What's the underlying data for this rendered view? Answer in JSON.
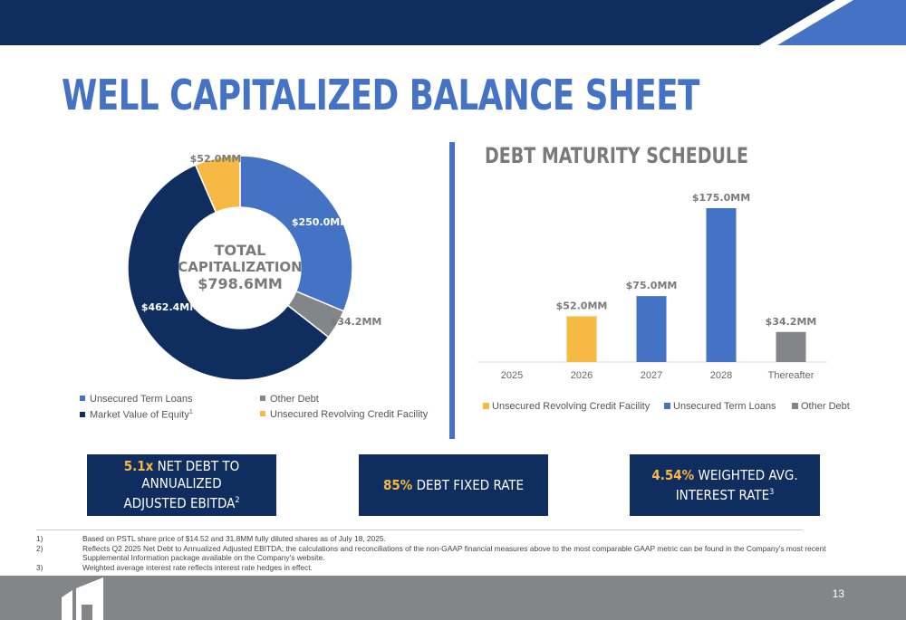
{
  "title": "WELL CAPITALIZED BALANCE SHEET",
  "colors": {
    "navy": "#0f2d5e",
    "blue": "#4472c4",
    "gold": "#f6b943",
    "gray": "#838589",
    "footer": "#848589"
  },
  "donut": {
    "center_lines": [
      "TOTAL",
      "CAPITALIZATION",
      "$798.6MM"
    ],
    "labels": {
      "unsecured_term_loans": "$250.0MM",
      "other_debt": "$34.2MM",
      "market_value_equity": "$462.4MM",
      "revolving_credit": "$52.0MM"
    },
    "legend": {
      "unsecured_term_loans": "Unsecured Term Loans",
      "other_debt": "Other Debt",
      "market_value_equity": "Market Value of Equity",
      "market_value_equity_note": "1",
      "revolving_credit": "Unsecured Revolving Credit Facility"
    }
  },
  "debt_title": "DEBT MATURITY SCHEDULE",
  "bar_legend": {
    "revolving": "Unsecured Revolving Credit Facility",
    "term_loans": "Unsecured Term Loans",
    "other": "Other Debt"
  },
  "kpis": {
    "net_debt": {
      "value": "5.1x",
      "line1": "NET DEBT TO ANNUALIZED",
      "line2": "ADJUSTED EBITDA",
      "note": "2"
    },
    "fixed_rate": {
      "value": "85%",
      "text": "DEBT FIXED RATE"
    },
    "interest": {
      "value": "4.54%",
      "line1": "WEIGHTED AVG.",
      "line2": "INTEREST RATE",
      "note": "3"
    }
  },
  "footnotes": [
    {
      "num": "1)",
      "text": "Based on PSTL share price of $14.52 and 31.8MM fully diluted shares as of July 18, 2025."
    },
    {
      "num": "2)",
      "text": "Reflects Q2 2025 Net Debt to Annualized Adjusted EBITDA; the calculations and reconciliations of the non-GAAP financial measures above to the most comparable GAAP metric can be found in the Company's most recent Supplemental Information package available on the Company's website."
    },
    {
      "num": "3)",
      "text": "Weighted average interest rate reflects interest rate hedges in effect."
    }
  ],
  "page_number": "13",
  "chart_data": [
    {
      "type": "pie",
      "variant": "donut",
      "title": "",
      "categories": [
        "Unsecured Term Loans",
        "Other Debt",
        "Market Value of Equity",
        "Unsecured Revolving Credit Facility"
      ],
      "values": [
        250.0,
        34.2,
        462.4,
        52.0
      ],
      "value_labels": [
        "$250.0MM",
        "$34.2MM",
        "$462.4MM",
        "$52.0MM"
      ],
      "colors": [
        "#4472c4",
        "#838589",
        "#0f2d5e",
        "#f6b943"
      ],
      "center_label": "TOTAL CAPITALIZATION $798.6MM",
      "legend": "bottom"
    },
    {
      "type": "bar",
      "stacked": true,
      "title": "DEBT MATURITY SCHEDULE",
      "categories": [
        "2025",
        "2026",
        "2027",
        "2028",
        "Thereafter"
      ],
      "series": [
        {
          "name": "Unsecured Revolving Credit Facility",
          "color": "#f6b943",
          "values": [
            0,
            52.0,
            0,
            0,
            0
          ]
        },
        {
          "name": "Unsecured Term Loans",
          "color": "#4472c4",
          "values": [
            0,
            0,
            75.0,
            175.0,
            0
          ]
        },
        {
          "name": "Other Debt",
          "color": "#838589",
          "values": [
            0,
            0,
            0,
            0,
            34.2
          ]
        }
      ],
      "bar_labels": [
        "",
        "$52.0MM",
        "$75.0MM",
        "$175.0MM",
        "$34.2MM"
      ],
      "ylim": [
        0,
        175
      ],
      "grid": false,
      "legend": "bottom"
    }
  ]
}
